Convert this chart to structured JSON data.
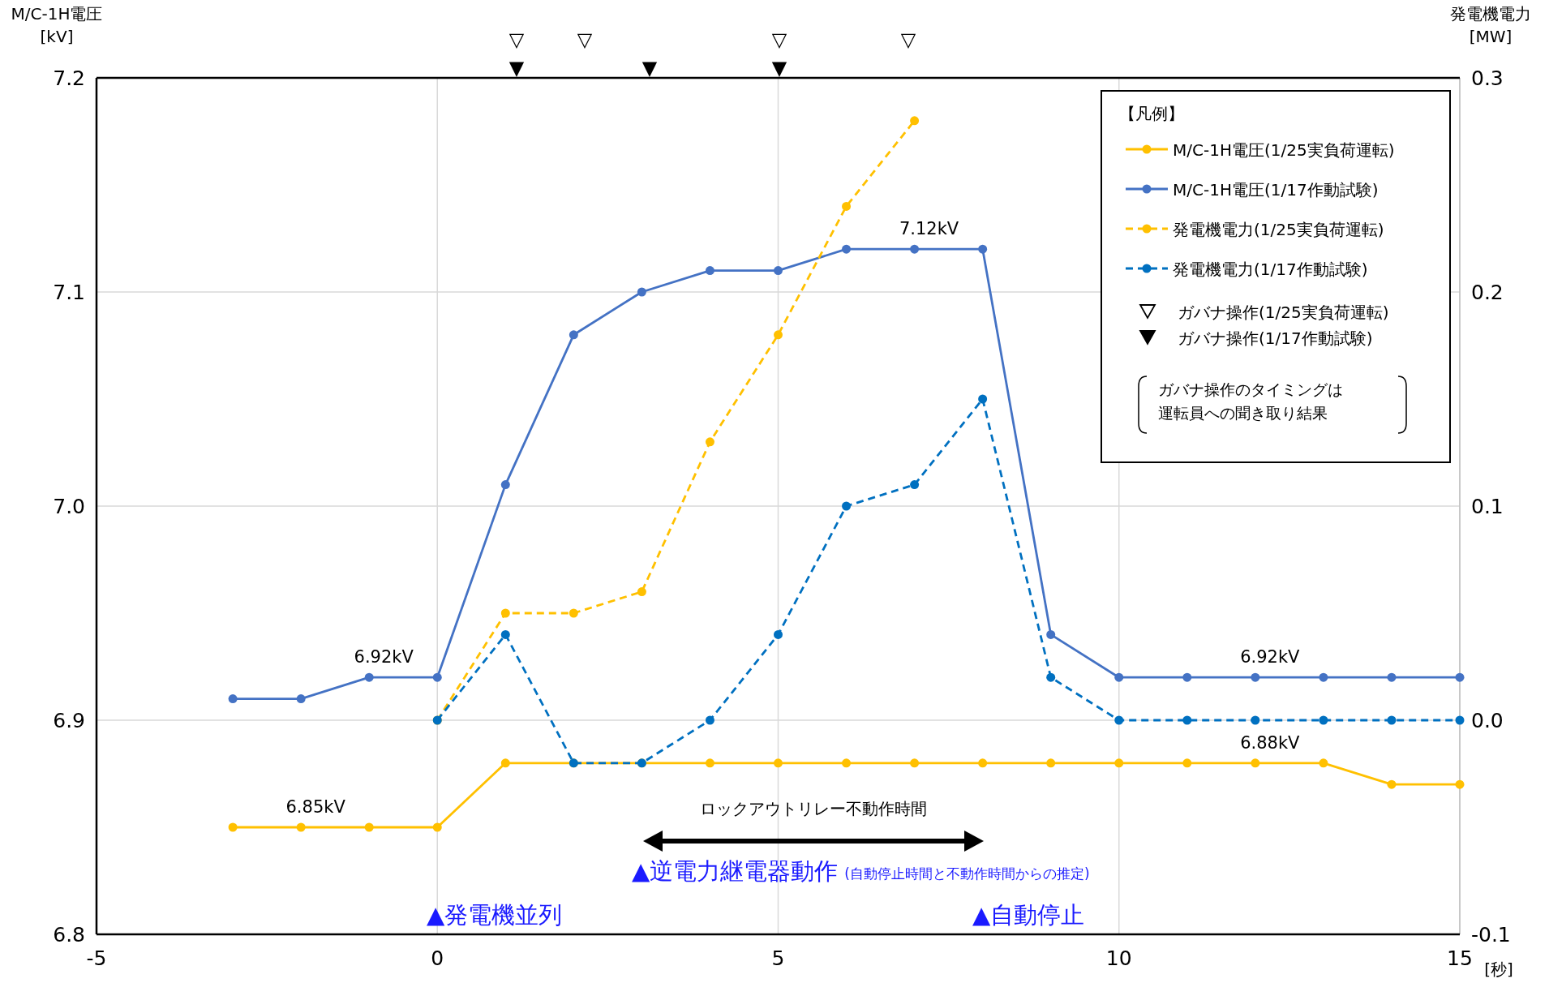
{
  "chart_data": {
    "type": "line",
    "xlabel": "[秒]",
    "ylabel": "M/C-1H電圧 [kV]",
    "y2label": "発電機電力 [MW]",
    "legend_title": "【凡例】",
    "xlim": [
      -5,
      15
    ],
    "xticks": [
      -5,
      0,
      5,
      10,
      15
    ],
    "ylim": [
      6.8,
      7.2
    ],
    "yticks": [
      6.8,
      6.9,
      {
        "value": 7.0,
        "label": "7.0"
      },
      7.1,
      7.2
    ],
    "y2lim": [
      -0.1,
      0.3
    ],
    "y2ticks": [
      -0.1,
      {
        "value": 0,
        "label": "0.0"
      },
      0.1,
      0.2,
      0.3
    ],
    "grid": true,
    "legend": "top right",
    "marker": "circle",
    "series": [
      {
        "name": "M/C-1H電圧(1/25実負荷運転)",
        "color": "#ffc000",
        "line_style": "solid",
        "x": [
          -3,
          -2,
          -1,
          0,
          1,
          2,
          3,
          4,
          5,
          6,
          7,
          8,
          9,
          10,
          11,
          12,
          13,
          14,
          15
        ],
        "values": [
          6.85,
          6.85,
          6.85,
          6.85,
          6.88,
          6.88,
          6.88,
          6.88,
          6.88,
          6.88,
          6.88,
          6.88,
          6.88,
          6.88,
          6.88,
          6.88,
          6.88,
          6.87,
          6.87
        ]
      },
      {
        "name": "M/C-1H電圧(1/17作動試験)",
        "color": "#4472c4",
        "line_style": "solid",
        "x": [
          -3,
          -2,
          -1,
          0,
          1,
          2,
          3,
          4,
          5,
          6,
          7,
          8,
          9,
          10,
          11,
          12,
          13,
          14,
          15
        ],
        "values": [
          6.91,
          6.91,
          6.92,
          6.92,
          7.01,
          7.08,
          7.1,
          7.11,
          7.11,
          7.12,
          7.12,
          7.12,
          6.94,
          6.92,
          6.92,
          6.92,
          6.92,
          6.92,
          6.92
        ]
      },
      {
        "name": "発電機電力(1/25実負荷運転)",
        "color": "#ffc000",
        "line_style": "dashed",
        "axis": "y2",
        "x": [
          0,
          1,
          2,
          3,
          4,
          5,
          6,
          7
        ],
        "values": [
          0.0,
          0.05,
          0.05,
          0.06,
          0.13,
          0.18,
          0.24,
          0.28
        ]
      },
      {
        "name": "発電機電力(1/17作動試験)",
        "color": "#0070c0",
        "line_style": "dashed",
        "axis": "y2",
        "x": [
          0,
          1,
          2,
          3,
          4,
          5,
          6,
          7,
          8,
          9,
          10,
          11,
          12,
          13,
          14,
          15
        ],
        "values": [
          0.0,
          0.04,
          -0.02,
          -0.02,
          0.0,
          0.04,
          0.1,
          0.11,
          0.15,
          0.02,
          0.0,
          0.0,
          0.0,
          0.0,
          0.0,
          0.0
        ]
      }
    ],
    "annotations": [
      {
        "text": "6.92kV",
        "x": -1,
        "y": 6.92
      },
      {
        "text": "7.12kV",
        "x": 7,
        "y": 7.12
      },
      {
        "text": "6.92kV",
        "x": 12,
        "y": 6.92
      },
      {
        "text": "6.88kV",
        "x": 12,
        "y": 6.88
      },
      {
        "text": "6.85kV",
        "x": -2,
        "y": 6.85
      },
      "▲発電機並列",
      "▲逆電力継電器動作",
      "(自動停止時間と不動作時間からの推定)",
      "▲自動停止",
      "▽",
      "▽",
      "▽",
      "▽",
      "▼",
      "▼",
      "▼",
      "ガバナ操作(1/25実負荷運転)",
      "ガバナ操作(1/17作動試験)",
      "ガバナ操作のタイミングは",
      "運転員への聞き取り結果",
      "ロックアウトリレー不動作時間"
    ]
  }
}
